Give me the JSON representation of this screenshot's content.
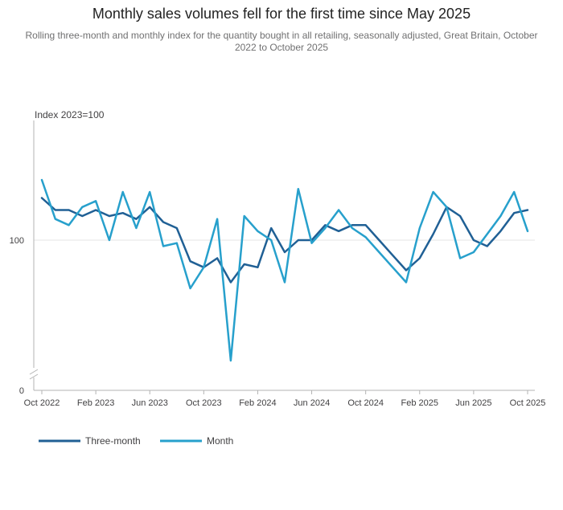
{
  "title": "Monthly sales volumes fell for the first time since May 2025",
  "subtitle": "Rolling three-month and monthly index for the quantity bought in all retailing, seasonally adjusted, Great Britain, October 2022 to October 2025",
  "colors": {
    "three_month": "#206095",
    "month": "#27a0cc",
    "axis": "#b3b3b3",
    "grid": "#e6e6e6"
  },
  "chart_data": {
    "type": "line",
    "title": "Monthly sales volumes fell for the first time since May 2025",
    "subtitle": "Rolling three-month and monthly index for the quantity bought in all retailing, seasonally adjusted, Great Britain, October 2022 to October 2025",
    "ylabel": "Index 2023=100",
    "xlabel": "",
    "broken_axis": true,
    "y_ticks": [
      0,
      100
    ],
    "x_ticks": [
      "Oct 2022",
      "Feb 2023",
      "Jun 2023",
      "Oct 2023",
      "Feb 2024",
      "Jun 2024",
      "Oct 2024",
      "Feb 2025",
      "Jun 2025",
      "Oct 2025"
    ],
    "x": [
      "Oct 2022",
      "Nov 2022",
      "Dec 2022",
      "Jan 2023",
      "Feb 2023",
      "Mar 2023",
      "Apr 2023",
      "May 2023",
      "Jun 2023",
      "Jul 2023",
      "Aug 2023",
      "Sep 2023",
      "Oct 2023",
      "Nov 2023",
      "Dec 2023",
      "Jan 2024",
      "Feb 2024",
      "Mar 2024",
      "Apr 2024",
      "May 2024",
      "Jun 2024",
      "Jul 2024",
      "Aug 2024",
      "Sep 2024",
      "Oct 2024",
      "Nov 2024",
      "Dec 2024",
      "Jan 2025",
      "Feb 2025",
      "Mar 2025",
      "Apr 2025",
      "May 2025",
      "Jun 2025",
      "Jul 2025",
      "Aug 2025",
      "Sep 2025",
      "Oct 2025"
    ],
    "series": [
      {
        "name": "Three-month",
        "values": [
          101.4,
          101.0,
          101.0,
          100.8,
          101.0,
          100.8,
          100.9,
          100.7,
          101.1,
          100.6,
          100.4,
          99.3,
          99.1,
          99.4,
          98.6,
          99.2,
          99.1,
          100.4,
          99.6,
          100.0,
          100.0,
          100.5,
          100.3,
          100.5,
          100.5,
          100.0,
          99.5,
          99.0,
          99.4,
          100.2,
          101.1,
          100.8,
          100.0,
          99.8,
          100.3,
          100.9,
          101.0
        ]
      },
      {
        "name": "Month",
        "values": [
          102.0,
          100.7,
          100.5,
          101.1,
          101.3,
          100.0,
          101.6,
          100.4,
          101.6,
          99.8,
          99.9,
          98.4,
          99.1,
          100.7,
          96.0,
          100.8,
          100.3,
          100.0,
          98.6,
          101.7,
          99.9,
          100.4,
          101.0,
          100.4,
          100.1,
          99.6,
          99.1,
          98.6,
          100.4,
          101.6,
          101.1,
          99.4,
          99.6,
          100.2,
          100.8,
          101.6,
          100.3
        ]
      }
    ],
    "legend": {
      "placement": "bottom-left",
      "entries": [
        "Three-month",
        "Month"
      ]
    }
  }
}
